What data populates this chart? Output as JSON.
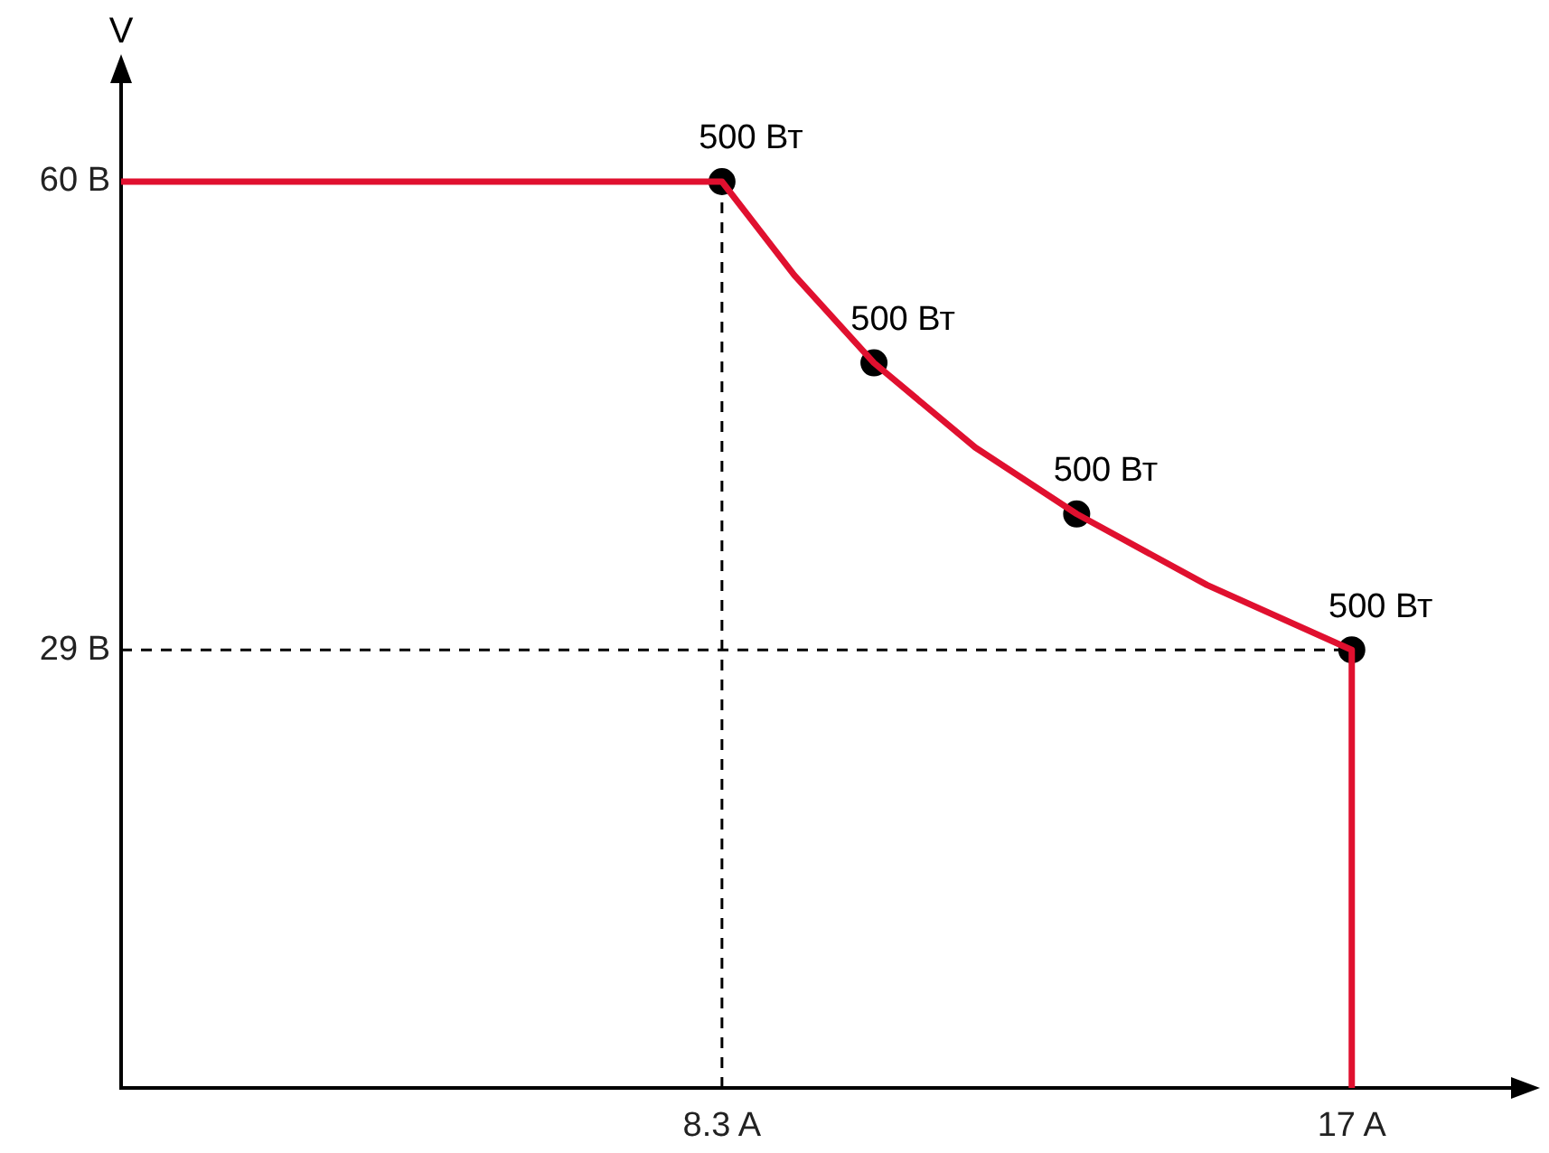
{
  "chart_data": {
    "type": "line",
    "ylabel": "V",
    "xlim": [
      0,
      19.3
    ],
    "ylim": [
      0,
      67
    ],
    "xticks": [
      {
        "value": 8.3,
        "label": "8.3 A"
      },
      {
        "value": 17,
        "label": "17 A"
      }
    ],
    "yticks": [
      {
        "value": 29,
        "label": "29 В"
      },
      {
        "value": 60,
        "label": "60 В"
      }
    ],
    "grid": false,
    "legend": false,
    "marker": "none",
    "line_style": "solid",
    "series": [
      {
        "color": "#e0102f",
        "x": [
          0,
          8.3,
          9.3,
          10.4,
          11.8,
          13.2,
          15,
          17,
          17
        ],
        "values": [
          60,
          60,
          53.8,
          48,
          42.4,
          38,
          33.3,
          29,
          0
        ]
      },
      {
        "type": "line",
        "color": "#000000",
        "line_style": "dashed",
        "x": [
          8.3,
          8.3
        ],
        "values": [
          0,
          60
        ]
      },
      {
        "type": "line",
        "color": "#000000",
        "line_style": "dashed",
        "x": [
          0,
          17
        ],
        "values": [
          29,
          29
        ]
      },
      {
        "type": "scatter",
        "color": "#000000",
        "marker": "circle",
        "x": [
          8.3,
          10.4,
          13.2,
          17
        ],
        "values": [
          60,
          48,
          38,
          29
        ]
      }
    ],
    "annotations": [
      {
        "text": "500 Вт",
        "x": 8.3,
        "y": 60
      },
      {
        "text": "500 Вт",
        "x": 10.4,
        "y": 48
      },
      {
        "text": "500 Вт",
        "x": 13.2,
        "y": 38
      },
      {
        "text": "500 Вт",
        "x": 17,
        "y": 29
      }
    ]
  }
}
